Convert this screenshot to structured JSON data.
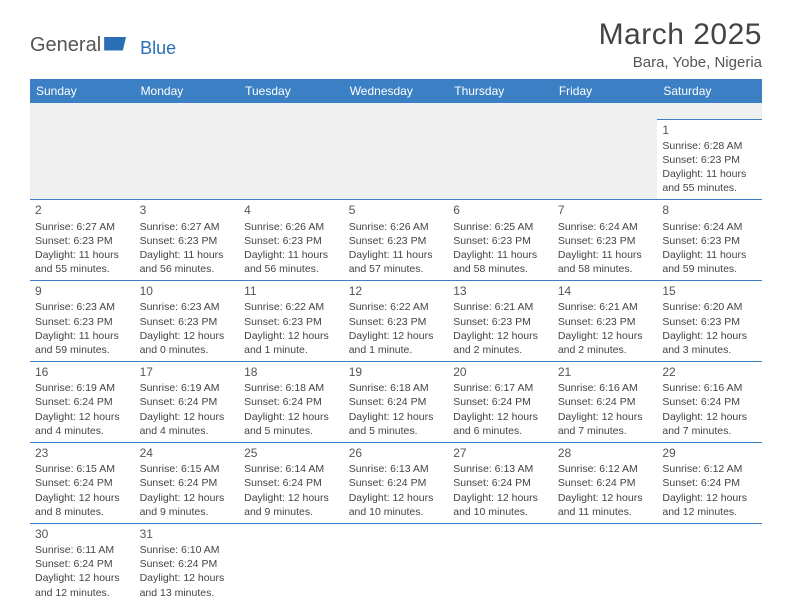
{
  "logo": {
    "part1": "General",
    "part2": "Blue"
  },
  "title": "March 2025",
  "location": "Bara, Yobe, Nigeria",
  "colors": {
    "header_bg": "#3b7fc4",
    "header_fg": "#ffffff",
    "cell_border": "#3b7fc4",
    "text": "#444444",
    "empty_bg": "#efefef"
  },
  "weekdays": [
    "Sunday",
    "Monday",
    "Tuesday",
    "Wednesday",
    "Thursday",
    "Friday",
    "Saturday"
  ],
  "grid": [
    [
      null,
      null,
      null,
      null,
      null,
      null,
      {
        "d": "1",
        "sr": "6:28 AM",
        "ss": "6:23 PM",
        "dl": "11 hours and 55 minutes."
      }
    ],
    [
      {
        "d": "2",
        "sr": "6:27 AM",
        "ss": "6:23 PM",
        "dl": "11 hours and 55 minutes."
      },
      {
        "d": "3",
        "sr": "6:27 AM",
        "ss": "6:23 PM",
        "dl": "11 hours and 56 minutes."
      },
      {
        "d": "4",
        "sr": "6:26 AM",
        "ss": "6:23 PM",
        "dl": "11 hours and 56 minutes."
      },
      {
        "d": "5",
        "sr": "6:26 AM",
        "ss": "6:23 PM",
        "dl": "11 hours and 57 minutes."
      },
      {
        "d": "6",
        "sr": "6:25 AM",
        "ss": "6:23 PM",
        "dl": "11 hours and 58 minutes."
      },
      {
        "d": "7",
        "sr": "6:24 AM",
        "ss": "6:23 PM",
        "dl": "11 hours and 58 minutes."
      },
      {
        "d": "8",
        "sr": "6:24 AM",
        "ss": "6:23 PM",
        "dl": "11 hours and 59 minutes."
      }
    ],
    [
      {
        "d": "9",
        "sr": "6:23 AM",
        "ss": "6:23 PM",
        "dl": "11 hours and 59 minutes."
      },
      {
        "d": "10",
        "sr": "6:23 AM",
        "ss": "6:23 PM",
        "dl": "12 hours and 0 minutes."
      },
      {
        "d": "11",
        "sr": "6:22 AM",
        "ss": "6:23 PM",
        "dl": "12 hours and 1 minute."
      },
      {
        "d": "12",
        "sr": "6:22 AM",
        "ss": "6:23 PM",
        "dl": "12 hours and 1 minute."
      },
      {
        "d": "13",
        "sr": "6:21 AM",
        "ss": "6:23 PM",
        "dl": "12 hours and 2 minutes."
      },
      {
        "d": "14",
        "sr": "6:21 AM",
        "ss": "6:23 PM",
        "dl": "12 hours and 2 minutes."
      },
      {
        "d": "15",
        "sr": "6:20 AM",
        "ss": "6:23 PM",
        "dl": "12 hours and 3 minutes."
      }
    ],
    [
      {
        "d": "16",
        "sr": "6:19 AM",
        "ss": "6:24 PM",
        "dl": "12 hours and 4 minutes."
      },
      {
        "d": "17",
        "sr": "6:19 AM",
        "ss": "6:24 PM",
        "dl": "12 hours and 4 minutes."
      },
      {
        "d": "18",
        "sr": "6:18 AM",
        "ss": "6:24 PM",
        "dl": "12 hours and 5 minutes."
      },
      {
        "d": "19",
        "sr": "6:18 AM",
        "ss": "6:24 PM",
        "dl": "12 hours and 5 minutes."
      },
      {
        "d": "20",
        "sr": "6:17 AM",
        "ss": "6:24 PM",
        "dl": "12 hours and 6 minutes."
      },
      {
        "d": "21",
        "sr": "6:16 AM",
        "ss": "6:24 PM",
        "dl": "12 hours and 7 minutes."
      },
      {
        "d": "22",
        "sr": "6:16 AM",
        "ss": "6:24 PM",
        "dl": "12 hours and 7 minutes."
      }
    ],
    [
      {
        "d": "23",
        "sr": "6:15 AM",
        "ss": "6:24 PM",
        "dl": "12 hours and 8 minutes."
      },
      {
        "d": "24",
        "sr": "6:15 AM",
        "ss": "6:24 PM",
        "dl": "12 hours and 9 minutes."
      },
      {
        "d": "25",
        "sr": "6:14 AM",
        "ss": "6:24 PM",
        "dl": "12 hours and 9 minutes."
      },
      {
        "d": "26",
        "sr": "6:13 AM",
        "ss": "6:24 PM",
        "dl": "12 hours and 10 minutes."
      },
      {
        "d": "27",
        "sr": "6:13 AM",
        "ss": "6:24 PM",
        "dl": "12 hours and 10 minutes."
      },
      {
        "d": "28",
        "sr": "6:12 AM",
        "ss": "6:24 PM",
        "dl": "12 hours and 11 minutes."
      },
      {
        "d": "29",
        "sr": "6:12 AM",
        "ss": "6:24 PM",
        "dl": "12 hours and 12 minutes."
      }
    ],
    [
      {
        "d": "30",
        "sr": "6:11 AM",
        "ss": "6:24 PM",
        "dl": "12 hours and 12 minutes."
      },
      {
        "d": "31",
        "sr": "6:10 AM",
        "ss": "6:24 PM",
        "dl": "12 hours and 13 minutes."
      },
      null,
      null,
      null,
      null,
      null
    ]
  ],
  "labels": {
    "sunrise": "Sunrise: ",
    "sunset": "Sunset: ",
    "daylight": "Daylight: "
  }
}
